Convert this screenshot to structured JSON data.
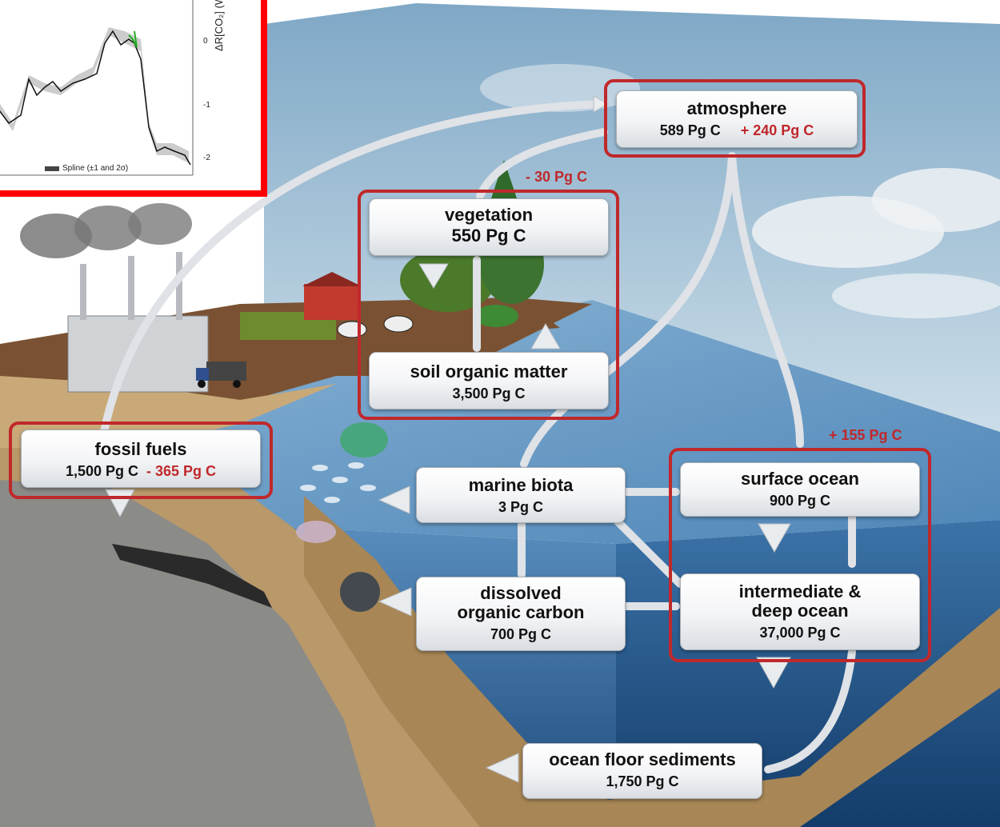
{
  "reservoirs": {
    "atmosphere": {
      "title": "atmosphere",
      "amount": "589 Pg C",
      "change": "+ 240 Pg C"
    },
    "vegetation": {
      "title": "vegetation",
      "amount": "550 Pg C",
      "change": "- 30 Pg C"
    },
    "soil": {
      "title": "soil organic matter",
      "amount": "3,500 Pg C"
    },
    "fossil_fuels": {
      "title": "fossil fuels",
      "amount": "1,500 Pg C",
      "change": "- 365 Pg C"
    },
    "marine_biota": {
      "title": "marine biota",
      "amount": "3 Pg C"
    },
    "surface_ocean": {
      "title": "surface ocean",
      "amount": "900 Pg C"
    },
    "ocean_change": "+ 155 Pg C",
    "dissolved_organic_carbon": {
      "title_line1": "dissolved",
      "title_line2": "organic carbon",
      "amount": "700 Pg C"
    },
    "deep_ocean": {
      "title_line1": "intermediate &",
      "title_line2": "deep ocean",
      "amount": "37,000 Pg C"
    },
    "sediments": {
      "title": "ocean floor sediments",
      "amount": "1,750 Pg C"
    }
  },
  "inset": {
    "y_label": "ΔR[CO₂] (W m",
    "y_ticks": [
      "0",
      "-1",
      "-2"
    ],
    "legend": "Spline (±1 and 2σ)"
  },
  "colors": {
    "highlight_red": "#c0282b",
    "inset_border": "#ff0000",
    "sky": "#a9c8dc",
    "ocean_surface": "#5f93c1",
    "deep_ocean": "#1f4f82",
    "land": "#7a5233",
    "arrow": "#dfe2e6"
  }
}
